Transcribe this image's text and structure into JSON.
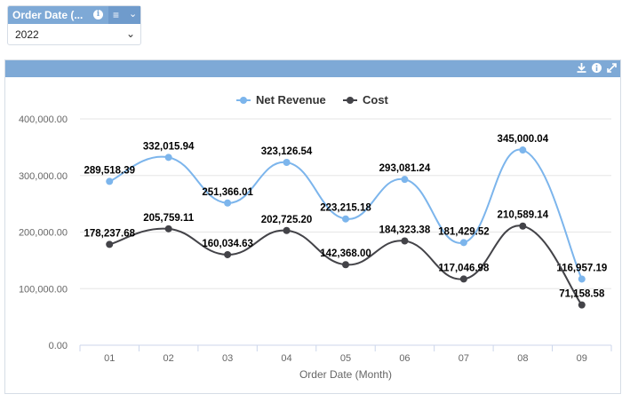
{
  "filter": {
    "title": "Order Date (...",
    "selected_value": "2022",
    "icons": {
      "info": "info-icon",
      "menu": "menu-icon",
      "collapse": "chevron-down-icon"
    }
  },
  "panel": {
    "toolbar_icons": [
      "download-icon",
      "info-icon",
      "expand-icon"
    ]
  },
  "colors": {
    "revenue": "#7cb5ec",
    "cost": "#434348",
    "header": "#7ea9d6"
  },
  "chart_data": {
    "type": "line",
    "categories": [
      "01",
      "02",
      "03",
      "04",
      "05",
      "06",
      "07",
      "08",
      "09"
    ],
    "series": [
      {
        "name": "Net Revenue",
        "color": "#7cb5ec",
        "values": [
          289518.39,
          332015.94,
          251366.01,
          323126.54,
          223215.18,
          293081.24,
          181429.52,
          345000.04,
          116957.19
        ],
        "labels": [
          "289,518.39",
          "332,015.94",
          "251,366.01",
          "323,126.54",
          "223,215.18",
          "293,081.24",
          "181,429.52",
          "345,000.04",
          "116,957.19"
        ]
      },
      {
        "name": "Cost",
        "color": "#434348",
        "values": [
          178237.68,
          205759.11,
          160034.63,
          202725.2,
          142368.0,
          184323.38,
          117046.98,
          210589.14,
          71158.58
        ],
        "labels": [
          "178,237.68",
          "205,759.11",
          "160,034.63",
          "202,725.20",
          "142,368.00",
          "184,323.38",
          "117,046.98",
          "210,589.14",
          "71,158.58"
        ]
      }
    ],
    "xlabel": "Order Date (Month)",
    "ylabel": "",
    "ylim": [
      0,
      400000
    ],
    "yticks": [
      0,
      100000,
      200000,
      300000,
      400000
    ],
    "ytick_labels": [
      "0.00",
      "100,000.00",
      "200,000.00",
      "300,000.00",
      "400,000.00"
    ],
    "legend_position": "top-center",
    "grid": true
  }
}
